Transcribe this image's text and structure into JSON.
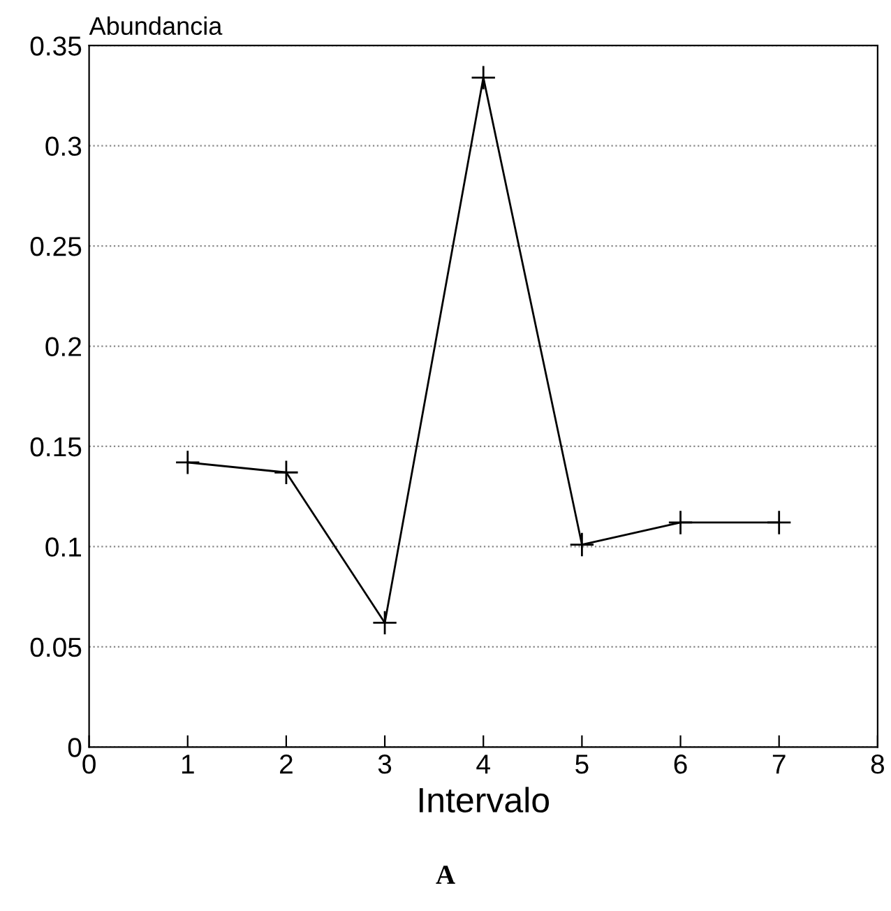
{
  "chart_data": {
    "type": "line",
    "ylabel": "Abundancia",
    "xlabel": "Intervalo",
    "x": [
      1,
      2,
      3,
      4,
      5,
      6,
      7
    ],
    "series": [
      {
        "color": "#000000",
        "values": [
          0.142,
          0.137,
          0.062,
          0.334,
          0.101,
          0.112,
          0.112
        ]
      }
    ],
    "xlim": [
      0,
      8
    ],
    "xticks": [
      0,
      1,
      2,
      3,
      4,
      5,
      6,
      7,
      8
    ],
    "ylim": [
      0,
      0.35
    ],
    "yticks": [
      0,
      0.05,
      0.1,
      0.15,
      0.2,
      0.25,
      0.3,
      0.35
    ],
    "grid": "y",
    "marker": "cross",
    "line_style": "solid",
    "annotations": [
      "A"
    ]
  }
}
